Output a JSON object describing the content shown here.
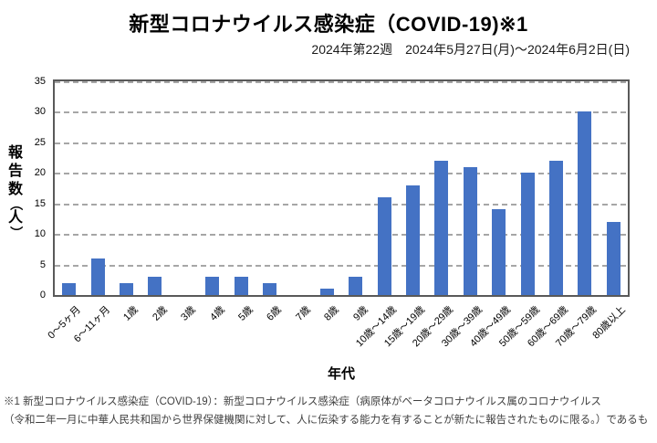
{
  "header": {
    "title": "新型コロナウイルス感染症（COVID-19)※1",
    "subtitle": "2024年第22週　2024年5月27日(月)～2024年6月2日(日)"
  },
  "chart_data": {
    "type": "bar",
    "title": "新型コロナウイルス感染症（COVID-19)※1",
    "subtitle": "2024年第22週　2024年5月27日(月)～2024年6月2日(日)",
    "categories": [
      "0～5ヶ月",
      "6～11ヶ月",
      "1歳",
      "2歳",
      "3歳",
      "4歳",
      "5歳",
      "6歳",
      "7歳",
      "8歳",
      "9歳",
      "10歳～14歳",
      "15歳～19歳",
      "20歳～29歳",
      "30歳～39歳",
      "40歳～49歳",
      "50歳～59歳",
      "60歳～69歳",
      "70歳～79歳",
      "80歳以上"
    ],
    "values": [
      2,
      6,
      2,
      3,
      0,
      3,
      3,
      2,
      0,
      1,
      3,
      16,
      18,
      22,
      21,
      14,
      20,
      22,
      30,
      12
    ],
    "xlabel": "年代",
    "ylabel": "報告数（人）",
    "ylim": [
      0,
      35
    ],
    "yticks": [
      0,
      5,
      10,
      15,
      20,
      25,
      30,
      35
    ],
    "grid": "horizontal-dashed",
    "legend": "none",
    "bar_color": "#4472C4"
  },
  "colors": {
    "bar": "#4472C4",
    "gridline": "#a6a6a6",
    "axis_border": "#595959",
    "footnote_text": "#3f3f3f"
  },
  "footnote": {
    "line1": "※1 新型コロナウイルス感染症（COVID-19）：新型コロナウイルス感染症（病原体がベータコロナウイルス属のコロナウイルス",
    "line2": "（令和二年一月に中華人民共和国から世界保健機関に対して、人に伝染する能力を有することが新たに報告されたものに限る。）であるも"
  }
}
